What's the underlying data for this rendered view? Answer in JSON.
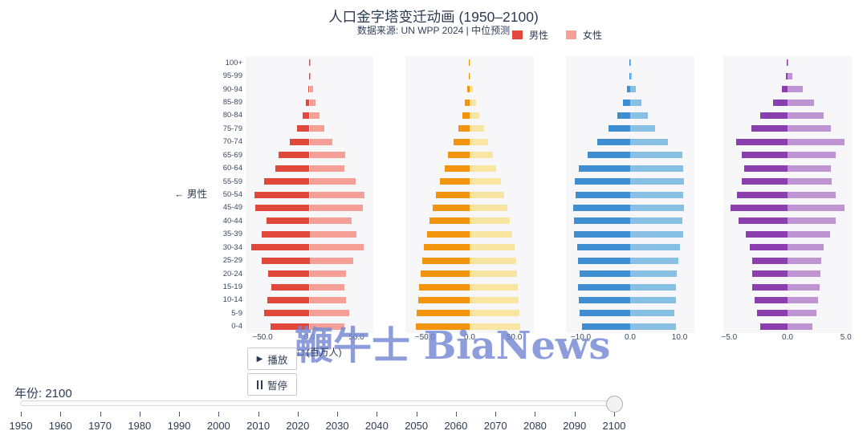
{
  "header": {
    "title": "人口金字塔变迁动画 (1950–2100)",
    "subtitle": "数据来源: UN WPP 2024 | 中位预测",
    "legend": [
      {
        "label": "男性",
        "color": "#e2473b"
      },
      {
        "label": "女性",
        "color": "#f4a097"
      }
    ]
  },
  "axis": {
    "left_gender_label": "← 男性",
    "unit_label": "□ (百万人)"
  },
  "controls": {
    "play_icon": "▶",
    "play_label": "播放",
    "pause_label": "暂停",
    "year_label": "年份: 2100"
  },
  "timeline": {
    "years": [
      "1950",
      "1960",
      "1970",
      "1980",
      "1990",
      "2000",
      "2010",
      "2020",
      "2030",
      "2040",
      "2050",
      "2060",
      "2070",
      "2080",
      "2090",
      "2100"
    ],
    "current_year": "2100"
  },
  "watermark": "鞭牛士 BiaNews",
  "chart_data": {
    "type": "bar",
    "subtype": "population_pyramids",
    "title": "人口金字塔变迁动画 (1950–2100)",
    "subtitle": "数据来源: UN WPP 2024 | 中位预测",
    "unit": "百万人",
    "age_groups_top_to_bottom": [
      "100+",
      "95-99",
      "90-94",
      "85-89",
      "80-84",
      "75-79",
      "70-74",
      "65-69",
      "60-64",
      "55-59",
      "50-54",
      "45-49",
      "40-44",
      "35-39",
      "30-34",
      "25-29",
      "20-24",
      "15-19",
      "10-14",
      "5-9",
      "0-4"
    ],
    "legend": [
      "男性",
      "女性"
    ],
    "pyramids": [
      {
        "male_color": "#e2473b",
        "female_color": "#f4a097",
        "xlim": [
          -68,
          68
        ],
        "x_ticks": [
          -50,
          0,
          50
        ],
        "x_tick_labels": [
          "−50.0",
          "0.0",
          "50.0"
        ],
        "male_values": [
          0.1,
          0.4,
          1.0,
          3.5,
          7.0,
          13.0,
          21.0,
          33.0,
          36.0,
          48.0,
          58.5,
          58.0,
          46.0,
          51.0,
          62.0,
          51.0,
          44.0,
          41.0,
          45.0,
          48.0,
          41.5
        ],
        "female_values": [
          0.4,
          1.5,
          3.5,
          6.5,
          11.0,
          16.0,
          24.0,
          38.0,
          37.5,
          49.0,
          59.0,
          57.0,
          45.0,
          50.0,
          58.0,
          47.0,
          39.0,
          37.0,
          39.0,
          42.0,
          37.0
        ]
      },
      {
        "male_color": "#f2940e",
        "female_color": "#f8e5a2",
        "xlim": [
          -72,
          72
        ],
        "x_ticks": [
          -50,
          0,
          50
        ],
        "x_tick_labels": [
          "−50.0",
          "0.0",
          "50.0"
        ],
        "male_values": [
          0.1,
          0.5,
          2.5,
          5.5,
          8.5,
          13.0,
          18.0,
          24.0,
          28.0,
          33.0,
          38.0,
          41.0,
          45.0,
          48.0,
          51.0,
          53.0,
          55.0,
          57.0,
          58.0,
          59.0,
          60.0
        ],
        "female_values": [
          0.3,
          1.2,
          3.5,
          7.5,
          11.0,
          16.0,
          21.0,
          26.0,
          30.0,
          35.0,
          39.0,
          42.0,
          45.0,
          48.0,
          50.0,
          52.0,
          53.0,
          54.0,
          55.0,
          56.0,
          57.0
        ]
      },
      {
        "male_color": "#3e8ed1",
        "female_color": "#88c0e4",
        "xlim": [
          -13,
          13
        ],
        "x_ticks": [
          -10,
          0,
          10
        ],
        "x_tick_labels": [
          "−10.0",
          "0.0",
          "10.0"
        ],
        "male_values": [
          0.05,
          0.2,
          0.7,
          1.5,
          2.6,
          4.4,
          6.7,
          8.6,
          10.4,
          11.2,
          11.0,
          11.5,
          11.3,
          11.4,
          10.8,
          10.5,
          10.3,
          10.5,
          10.4,
          10.2,
          9.7
        ],
        "female_values": [
          0.15,
          0.4,
          1.1,
          2.2,
          3.5,
          5.1,
          7.6,
          10.5,
          10.8,
          10.9,
          10.7,
          10.9,
          10.6,
          10.7,
          10.0,
          9.8,
          9.5,
          9.2,
          9.3,
          9.0,
          9.2
        ]
      },
      {
        "male_color": "#8b3fae",
        "female_color": "#bf94d3",
        "xlim": [
          -5.5,
          5.5
        ],
        "x_ticks": [
          -5,
          0,
          5
        ],
        "x_tick_labels": [
          "−5.0",
          "0.0",
          "5.0"
        ],
        "male_values": [
          0.02,
          0.15,
          0.5,
          1.25,
          2.35,
          3.1,
          4.4,
          3.95,
          3.7,
          3.9,
          4.3,
          4.9,
          4.2,
          3.6,
          3.2,
          3.0,
          3.0,
          3.0,
          2.8,
          2.6,
          2.35
        ],
        "female_values": [
          0.08,
          0.4,
          1.3,
          2.3,
          3.1,
          3.7,
          4.9,
          4.1,
          3.7,
          3.8,
          4.1,
          4.9,
          4.1,
          3.65,
          3.1,
          2.9,
          2.85,
          2.75,
          2.6,
          2.45,
          2.15
        ]
      }
    ]
  }
}
